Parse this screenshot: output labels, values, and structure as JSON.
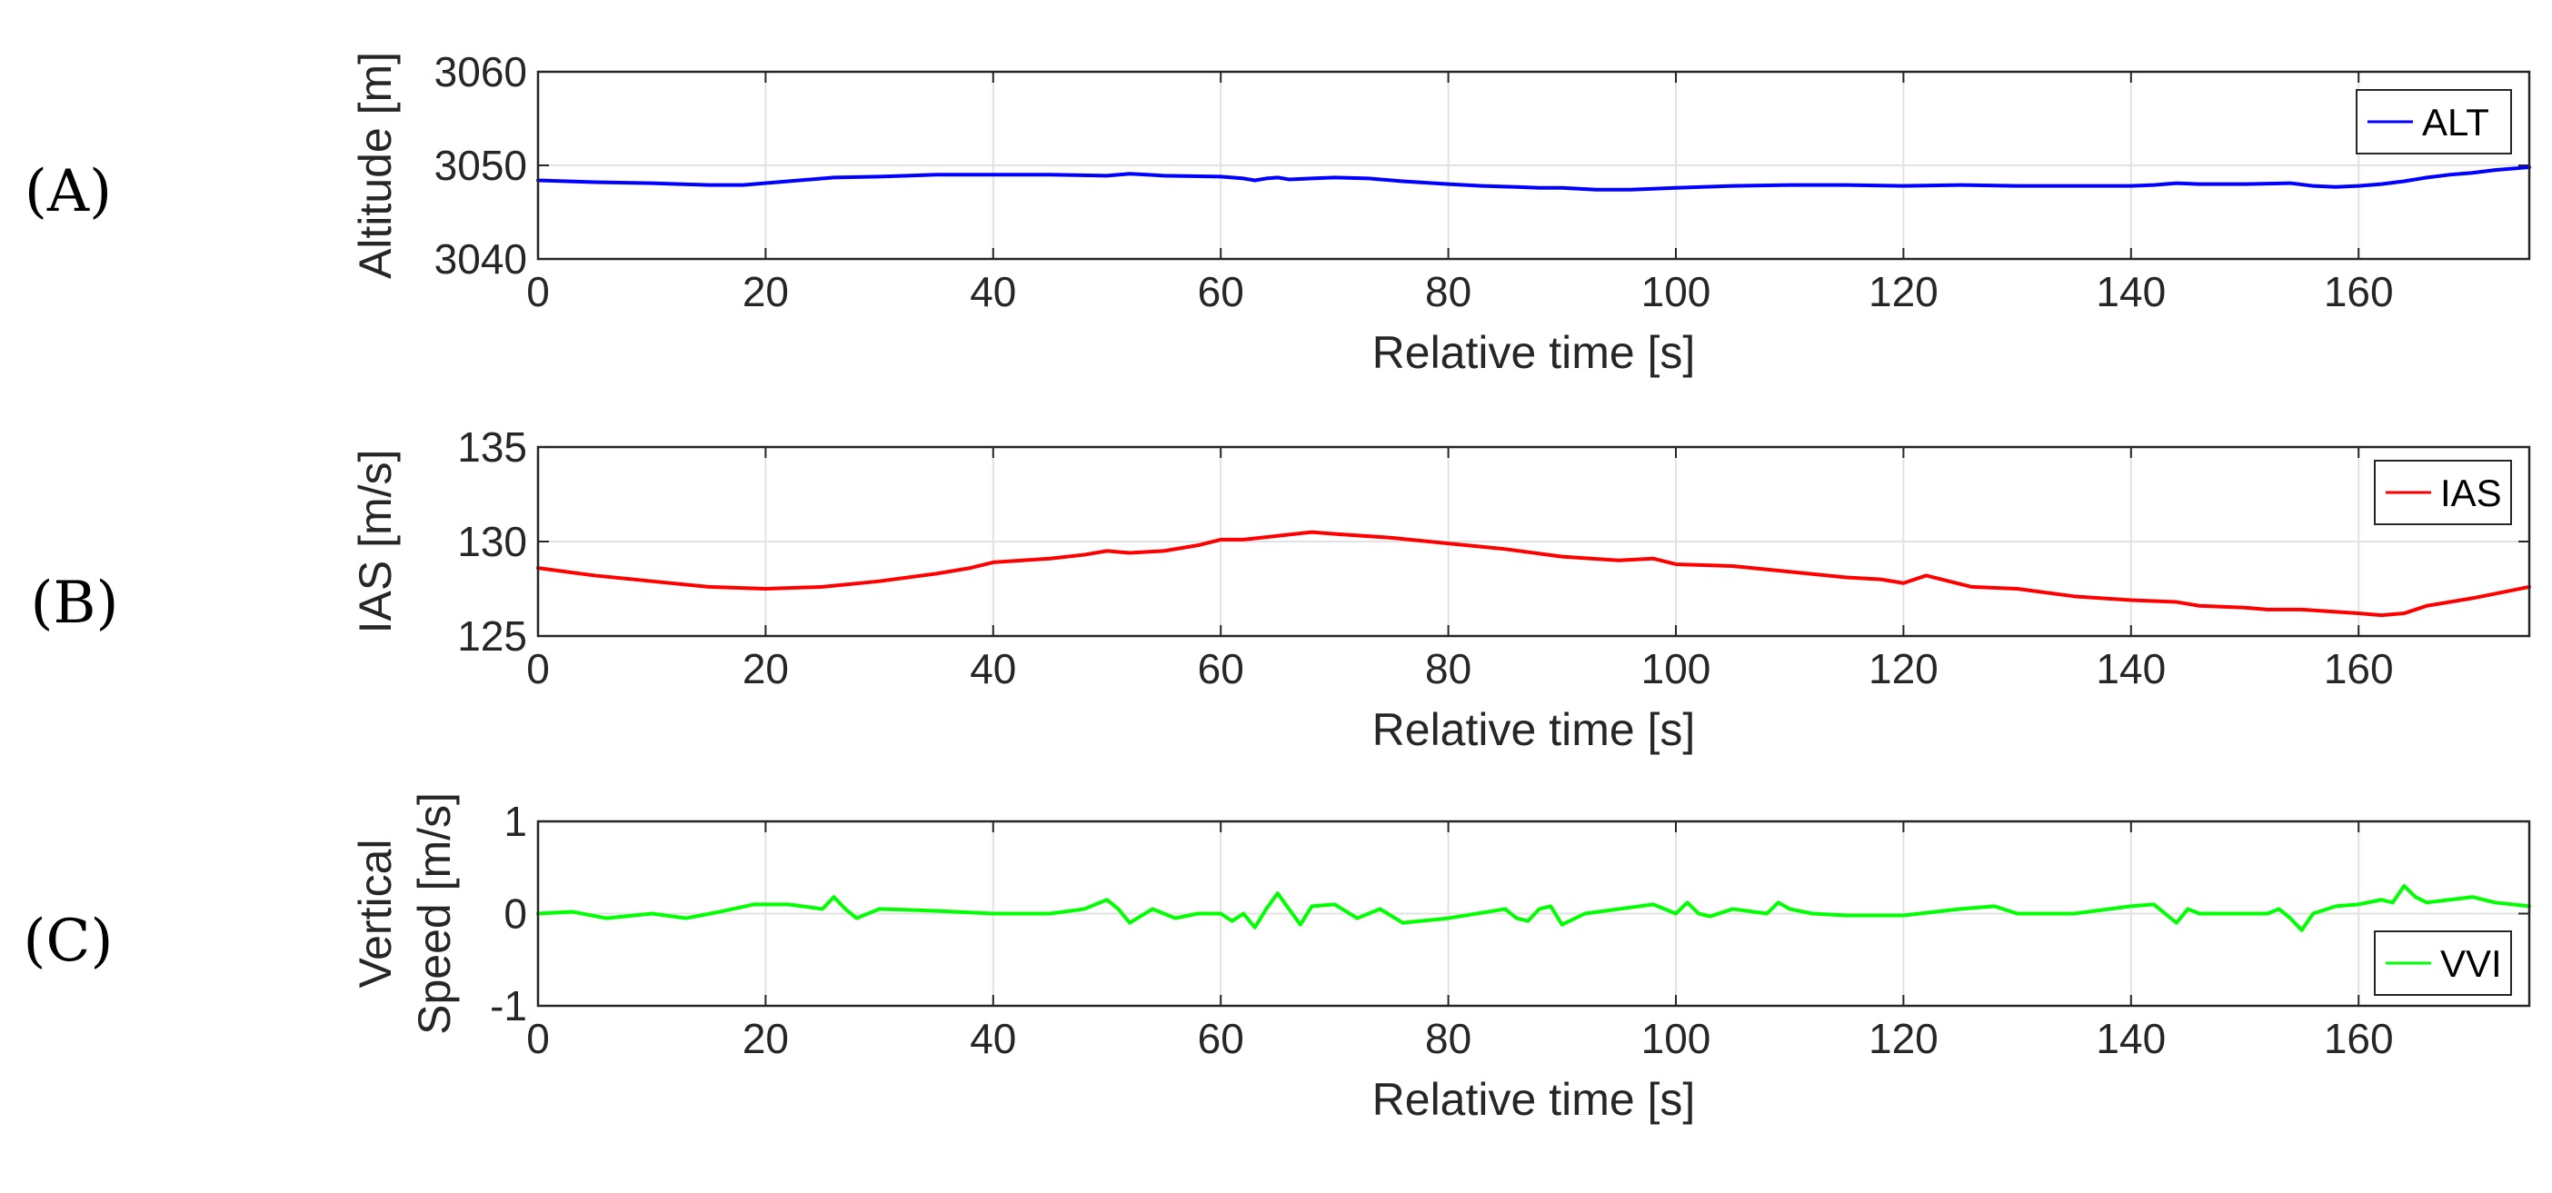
{
  "panel_labels": [
    "(A)",
    "(B)",
    "(C)"
  ],
  "colors": {
    "ALT": "#0000ff",
    "IAS": "#ff0000",
    "VVI": "#00ff00",
    "grid": "#e2e2e2",
    "axes": "#262626"
  },
  "chart_data": [
    {
      "type": "line",
      "panel": "(A)",
      "title": "",
      "xlabel": "Relative time [s]",
      "ylabel": "Altitude [m]",
      "xlim": [
        0,
        175
      ],
      "ylim": [
        3040,
        3060
      ],
      "xticks": [
        0,
        20,
        40,
        60,
        80,
        100,
        120,
        140,
        160
      ],
      "yticks": [
        3040,
        3050,
        3060
      ],
      "grid": true,
      "legend": "top-right",
      "series": [
        {
          "name": "ALT",
          "color": "#0000ff",
          "x": [
            0,
            5,
            10,
            15,
            18,
            22,
            26,
            30,
            35,
            40,
            45,
            50,
            52,
            55,
            60,
            62,
            63,
            64,
            65,
            66,
            68,
            70,
            73,
            76,
            80,
            83,
            86,
            88,
            90,
            93,
            96,
            100,
            105,
            110,
            115,
            120,
            125,
            130,
            135,
            140,
            142,
            144,
            146,
            150,
            154,
            156,
            158,
            160,
            162,
            164,
            166,
            168,
            170,
            172,
            175
          ],
          "y": [
            3048.4,
            3048.2,
            3048.1,
            3047.9,
            3047.9,
            3048.3,
            3048.7,
            3048.8,
            3049.0,
            3049.0,
            3049.0,
            3048.9,
            3049.1,
            3048.9,
            3048.8,
            3048.6,
            3048.4,
            3048.6,
            3048.7,
            3048.5,
            3048.6,
            3048.7,
            3048.6,
            3048.3,
            3048.0,
            3047.8,
            3047.7,
            3047.6,
            3047.6,
            3047.4,
            3047.4,
            3047.6,
            3047.8,
            3047.9,
            3047.9,
            3047.8,
            3047.9,
            3047.8,
            3047.8,
            3047.8,
            3047.9,
            3048.1,
            3048.0,
            3048.0,
            3048.1,
            3047.8,
            3047.7,
            3047.8,
            3048.0,
            3048.3,
            3048.7,
            3049.0,
            3049.2,
            3049.5,
            3049.8
          ]
        }
      ]
    },
    {
      "type": "line",
      "panel": "(B)",
      "title": "",
      "xlabel": "Relative time [s]",
      "ylabel": "IAS [m/s]",
      "xlim": [
        0,
        175
      ],
      "ylim": [
        125,
        135
      ],
      "xticks": [
        0,
        20,
        40,
        60,
        80,
        100,
        120,
        140,
        160
      ],
      "yticks": [
        125,
        130,
        135
      ],
      "grid": true,
      "legend": "top-right",
      "series": [
        {
          "name": "IAS",
          "color": "#ff0000",
          "x": [
            0,
            5,
            10,
            15,
            20,
            25,
            30,
            35,
            38,
            40,
            45,
            48,
            50,
            52,
            55,
            58,
            60,
            62,
            65,
            68,
            70,
            75,
            80,
            85,
            90,
            95,
            98,
            100,
            105,
            110,
            115,
            118,
            120,
            122,
            124,
            126,
            130,
            135,
            140,
            144,
            146,
            150,
            152,
            155,
            160,
            162,
            164,
            166,
            170,
            175
          ],
          "y": [
            128.6,
            128.2,
            127.9,
            127.6,
            127.5,
            127.6,
            127.9,
            128.3,
            128.6,
            128.9,
            129.1,
            129.3,
            129.5,
            129.4,
            129.5,
            129.8,
            130.1,
            130.1,
            130.3,
            130.5,
            130.4,
            130.2,
            129.9,
            129.6,
            129.2,
            129.0,
            129.1,
            128.8,
            128.7,
            128.4,
            128.1,
            128.0,
            127.8,
            128.2,
            127.9,
            127.6,
            127.5,
            127.1,
            126.9,
            126.8,
            126.6,
            126.5,
            126.4,
            126.4,
            126.2,
            126.1,
            126.2,
            126.6,
            127.0,
            127.6
          ]
        }
      ]
    },
    {
      "type": "line",
      "panel": "(C)",
      "title": "",
      "xlabel": "Relative time [s]",
      "ylabel": "Vertical Speed [m/s]",
      "ylabel_lines": [
        "Vertical",
        "Speed [m/s]"
      ],
      "xlim": [
        0,
        175
      ],
      "ylim": [
        -1,
        1
      ],
      "xticks": [
        0,
        20,
        40,
        60,
        80,
        100,
        120,
        140,
        160
      ],
      "yticks": [
        -1,
        0,
        1
      ],
      "grid": true,
      "legend": "bottom-right",
      "series": [
        {
          "name": "VVI",
          "color": "#00ff00",
          "x": [
            0,
            3,
            6,
            10,
            13,
            16,
            19,
            22,
            25,
            26,
            27,
            28,
            30,
            35,
            40,
            45,
            48,
            50,
            51,
            52,
            54,
            56,
            58,
            60,
            61,
            62,
            63,
            64,
            65,
            66,
            67,
            68,
            70,
            72,
            74,
            76,
            80,
            85,
            86,
            87,
            88,
            89,
            90,
            92,
            95,
            98,
            100,
            101,
            102,
            103,
            105,
            108,
            109,
            110,
            112,
            115,
            120,
            125,
            128,
            130,
            135,
            140,
            142,
            143,
            144,
            145,
            146,
            148,
            150,
            152,
            153,
            154,
            155,
            156,
            158,
            160,
            162,
            163,
            164,
            165,
            166,
            168,
            170,
            172,
            175
          ],
          "y": [
            0.0,
            0.02,
            -0.05,
            0.0,
            -0.05,
            0.02,
            0.1,
            0.1,
            0.05,
            0.18,
            0.05,
            -0.05,
            0.05,
            0.03,
            0.0,
            0.0,
            0.05,
            0.15,
            0.05,
            -0.1,
            0.05,
            -0.05,
            0.0,
            0.0,
            -0.08,
            0.0,
            -0.15,
            0.05,
            0.22,
            0.05,
            -0.12,
            0.08,
            0.1,
            -0.05,
            0.05,
            -0.1,
            -0.05,
            0.05,
            -0.05,
            -0.08,
            0.05,
            0.08,
            -0.12,
            0.0,
            0.05,
            0.1,
            0.0,
            0.12,
            0.0,
            -0.03,
            0.05,
            0.0,
            0.12,
            0.05,
            0.0,
            -0.02,
            -0.02,
            0.05,
            0.08,
            0.0,
            0.0,
            0.08,
            0.1,
            0.0,
            -0.1,
            0.05,
            0.0,
            0.0,
            0.0,
            0.0,
            0.05,
            -0.05,
            -0.18,
            0.0,
            0.08,
            0.1,
            0.15,
            0.12,
            0.3,
            0.18,
            0.12,
            0.15,
            0.18,
            0.12,
            0.08
          ]
        }
      ]
    }
  ]
}
